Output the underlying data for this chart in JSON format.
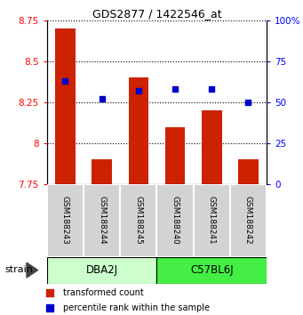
{
  "title": "GDS2877 / 1422546_at",
  "samples": [
    "GSM188243",
    "GSM188244",
    "GSM188245",
    "GSM188240",
    "GSM188241",
    "GSM188242"
  ],
  "groups": [
    {
      "name": "DBA2J",
      "indices": [
        0,
        1,
        2
      ],
      "color": "#ccffcc"
    },
    {
      "name": "C57BL6J",
      "indices": [
        3,
        4,
        5
      ],
      "color": "#44ee44"
    }
  ],
  "transformed_counts": [
    8.7,
    7.9,
    8.4,
    8.1,
    8.2,
    7.9
  ],
  "percentile_ranks": [
    63,
    52,
    57,
    58,
    58,
    50
  ],
  "bar_color": "#cc2200",
  "dot_color": "#0000cc",
  "ylim_left": [
    7.75,
    8.75
  ],
  "ylim_right": [
    0,
    100
  ],
  "yticks_left": [
    7.75,
    8.0,
    8.25,
    8.5,
    8.75
  ],
  "yticks_right": [
    0,
    25,
    50,
    75,
    100
  ],
  "ytick_labels_left": [
    "7.75",
    "8",
    "8.25",
    "8.5",
    "8.75"
  ],
  "ytick_labels_right": [
    "0",
    "25",
    "50",
    "75",
    "100%"
  ],
  "strain_label": "strain",
  "sample_box_color": "#d3d3d3",
  "bar_bottom": 7.75,
  "dot_size": 25,
  "bar_width": 0.55
}
